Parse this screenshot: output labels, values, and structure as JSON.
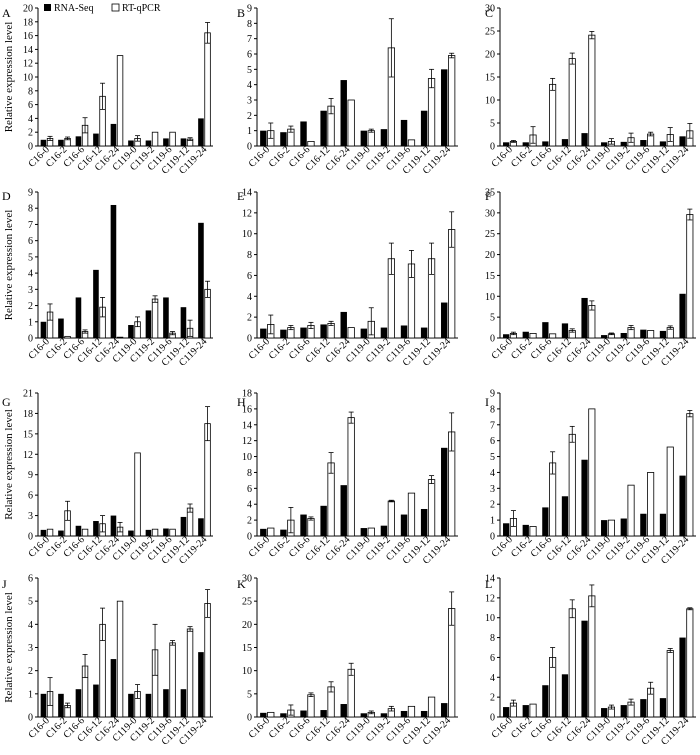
{
  "figure": {
    "ylabel": "Relative expression level",
    "legend": {
      "rna_label": "RNA-Seq",
      "qpcr_label": "RT-qPCR",
      "placement": "top-left"
    },
    "colors": {
      "rna": "#000000",
      "qpcr": "#ffffff",
      "axis": "#000000"
    }
  },
  "chart_data": [
    {
      "type": "bar",
      "panel": "A",
      "categories": [
        "C16-0",
        "C16-2",
        "C16-6",
        "C16-12",
        "C16-24",
        "C119-0",
        "C119-2",
        "C119-6",
        "C119-12",
        "C119-24"
      ],
      "ylim": [
        0,
        20
      ],
      "yticks": [
        0,
        2,
        4,
        6,
        8,
        10,
        12,
        14,
        16,
        18,
        20
      ],
      "series": [
        {
          "name": "RNA-Seq",
          "values": [
            0.9,
            0.9,
            1.4,
            1.8,
            3.2,
            0.8,
            0.8,
            1.1,
            1.1,
            4.0
          ]
        },
        {
          "name": "RT-qPCR",
          "values": [
            1.1,
            1.1,
            3.0,
            7.2,
            13.1,
            1.1,
            2.0,
            2.0,
            1.0,
            16.4
          ],
          "errors": [
            0.3,
            0.2,
            1.1,
            1.9,
            0,
            0.4,
            0,
            0,
            0.2,
            1.5
          ]
        }
      ]
    },
    {
      "type": "bar",
      "panel": "B",
      "categories": [
        "C16-0",
        "C16-2",
        "C16-6",
        "C16-12",
        "C16-24",
        "C119-0",
        "C119-2",
        "C119-6",
        "C119-12",
        "C119-24"
      ],
      "ylim": [
        0,
        9
      ],
      "yticks": [
        0,
        1,
        2,
        3,
        4,
        5,
        6,
        7,
        8,
        9
      ],
      "series": [
        {
          "name": "RNA-Seq",
          "values": [
            1.0,
            0.9,
            1.6,
            2.3,
            4.3,
            1.0,
            1.1,
            1.7,
            2.3,
            5.0
          ]
        },
        {
          "name": "RT-qPCR",
          "values": [
            1.0,
            1.1,
            0.3,
            2.6,
            3.0,
            1.0,
            6.4,
            0.4,
            4.4,
            5.9
          ],
          "errors": [
            0.5,
            0.2,
            0,
            0.5,
            0,
            0.1,
            1.9,
            0,
            0.6,
            0.15
          ]
        }
      ]
    },
    {
      "type": "bar",
      "panel": "C",
      "categories": [
        "C16-0",
        "C16-2",
        "C16-6",
        "C16-12",
        "C16-24",
        "C119-0",
        "C119-2",
        "C119-6",
        "C119-12",
        "C119-24"
      ],
      "ylim": [
        0,
        30
      ],
      "yticks": [
        0,
        5,
        10,
        15,
        20,
        25,
        30
      ],
      "series": [
        {
          "name": "RNA-Seq",
          "values": [
            0.8,
            0.8,
            1.0,
            1.5,
            2.8,
            0.8,
            0.9,
            1.3,
            1.0,
            2.1
          ]
        },
        {
          "name": "RT-qPCR",
          "values": [
            1.0,
            2.4,
            13.4,
            19.0,
            24.1,
            1.0,
            1.8,
            2.6,
            2.5,
            3.3
          ],
          "errors": [
            0.2,
            1.8,
            1.3,
            1.2,
            0.8,
            0.6,
            1.0,
            0.4,
            1.5,
            1.6
          ]
        }
      ]
    },
    {
      "type": "bar",
      "panel": "D",
      "categories": [
        "C16-0",
        "C16-2",
        "C16-6",
        "C16-12",
        "C16-24",
        "C119-0",
        "C119-2",
        "C119-6",
        "C119-12",
        "C119-24"
      ],
      "ylim": [
        0,
        9
      ],
      "yticks": [
        0,
        1,
        2,
        3,
        4,
        5,
        6,
        7,
        8,
        9
      ],
      "series": [
        {
          "name": "RNA-Seq",
          "values": [
            1.0,
            1.2,
            2.5,
            4.2,
            8.2,
            0.8,
            1.7,
            2.5,
            1.9,
            7.1
          ]
        },
        {
          "name": "RT-qPCR",
          "values": [
            1.6,
            0.1,
            0.4,
            1.9,
            0.05,
            1.0,
            2.4,
            0.3,
            0.6,
            3.0
          ],
          "errors": [
            0.5,
            0,
            0.1,
            0.6,
            0,
            0.3,
            0.2,
            0.1,
            0.5,
            0.5
          ]
        }
      ]
    },
    {
      "type": "bar",
      "panel": "E",
      "categories": [
        "C16-0",
        "C16-2",
        "C16-6",
        "C16-12",
        "C16-24",
        "C119-0",
        "C119-2",
        "C119-6",
        "C119-12",
        "C119-24"
      ],
      "ylim": [
        0,
        14
      ],
      "yticks": [
        0,
        2,
        4,
        6,
        8,
        10,
        12,
        14
      ],
      "series": [
        {
          "name": "RNA-Seq",
          "values": [
            0.9,
            0.8,
            1.0,
            1.3,
            2.5,
            0.9,
            1.0,
            1.2,
            1.0,
            3.4
          ]
        },
        {
          "name": "RT-qPCR",
          "values": [
            1.3,
            1.0,
            1.2,
            1.4,
            1.0,
            1.6,
            7.6,
            7.1,
            7.6,
            10.4
          ],
          "errors": [
            0.9,
            0.2,
            0.3,
            0.2,
            0,
            1.3,
            1.5,
            1.3,
            1.5,
            1.7
          ]
        }
      ]
    },
    {
      "type": "bar",
      "panel": "F",
      "categories": [
        "C16-0",
        "C16-2",
        "C16-6",
        "C16-12",
        "C16-24",
        "C119-0",
        "C119-2",
        "C119-6",
        "C119-12",
        "C119-24"
      ],
      "ylim": [
        0,
        35
      ],
      "yticks": [
        0,
        5,
        10,
        15,
        20,
        25,
        30,
        35
      ],
      "series": [
        {
          "name": "RNA-Seq",
          "values": [
            0.9,
            1.5,
            3.8,
            3.5,
            9.6,
            0.7,
            1.2,
            2.0,
            1.7,
            10.6
          ]
        },
        {
          "name": "RT-qPCR",
          "values": [
            1.1,
            1.1,
            1.0,
            1.8,
            7.8,
            1.0,
            2.5,
            1.8,
            2.5,
            29.6
          ],
          "errors": [
            0.3,
            0,
            0,
            0.4,
            1.1,
            0.2,
            0.5,
            0,
            0.4,
            1.3
          ]
        }
      ]
    },
    {
      "type": "bar",
      "panel": "G",
      "categories": [
        "C16-0",
        "C16-2",
        "C16-6",
        "C16-12",
        "C16-24",
        "C119-0",
        "C119-2",
        "C119-6",
        "C119-12",
        "C119-24"
      ],
      "ylim": [
        0,
        21
      ],
      "yticks": [
        0,
        3,
        6,
        9,
        12,
        15,
        18,
        21
      ],
      "series": [
        {
          "name": "RNA-Seq",
          "values": [
            0.9,
            0.8,
            1.5,
            2.2,
            3.0,
            0.8,
            0.9,
            1.1,
            2.8,
            2.6
          ]
        },
        {
          "name": "RT-qPCR",
          "values": [
            1.0,
            3.7,
            1.0,
            1.8,
            1.3,
            12.2,
            1.0,
            1.0,
            4.1,
            16.5
          ],
          "errors": [
            0,
            1.4,
            0,
            1.2,
            0.7,
            0,
            0,
            0,
            0.6,
            2.5
          ]
        }
      ]
    },
    {
      "type": "bar",
      "panel": "H",
      "categories": [
        "C16-0",
        "C16-2",
        "C16-6",
        "C16-12",
        "C16-24",
        "C119-0",
        "C119-2",
        "C119-6",
        "C119-12",
        "C119-24"
      ],
      "ylim": [
        0,
        18
      ],
      "yticks": [
        0,
        2,
        4,
        6,
        8,
        10,
        12,
        14,
        16,
        18
      ],
      "series": [
        {
          "name": "RNA-Seq",
          "values": [
            0.9,
            0.8,
            2.7,
            3.8,
            6.4,
            1.0,
            1.3,
            2.7,
            3.4,
            11.1
          ]
        },
        {
          "name": "RT-qPCR",
          "values": [
            1.0,
            2.0,
            2.2,
            9.2,
            14.9,
            1.0,
            4.4,
            5.4,
            7.1,
            13.1
          ],
          "errors": [
            0,
            1.6,
            0.2,
            1.3,
            0.7,
            0,
            0.1,
            0,
            0.5,
            2.4
          ]
        }
      ]
    },
    {
      "type": "bar",
      "panel": "I",
      "categories": [
        "C16-0",
        "C16-2",
        "C16-6",
        "C16-12",
        "C16-24",
        "C119-0",
        "C119-2",
        "C119-6",
        "C119-12",
        "C119-24"
      ],
      "ylim": [
        0,
        9
      ],
      "yticks": [
        0,
        1,
        2,
        3,
        4,
        5,
        6,
        7,
        8,
        9
      ],
      "series": [
        {
          "name": "RNA-Seq",
          "values": [
            0.8,
            0.7,
            1.8,
            2.5,
            4.8,
            1.0,
            1.1,
            1.4,
            1.4,
            3.8
          ]
        },
        {
          "name": "RT-qPCR",
          "values": [
            1.1,
            0.6,
            4.6,
            6.4,
            8.0,
            1.0,
            3.2,
            4.0,
            5.6,
            7.7
          ],
          "errors": [
            0.5,
            0,
            0.7,
            0.5,
            0,
            0,
            0,
            0,
            0,
            0.2
          ]
        }
      ]
    },
    {
      "type": "bar",
      "panel": "J",
      "categories": [
        "C16-0",
        "C16-2",
        "C16-6",
        "C16-12",
        "C16-24",
        "C119-0",
        "C119-2",
        "C119-6",
        "C119-12",
        "C119-24"
      ],
      "ylim": [
        0,
        6
      ],
      "yticks": [
        0,
        1,
        2,
        3,
        4,
        5,
        6
      ],
      "series": [
        {
          "name": "RNA-Seq",
          "values": [
            1.0,
            1.0,
            1.2,
            1.4,
            2.5,
            1.0,
            1.0,
            1.2,
            1.2,
            2.8
          ]
        },
        {
          "name": "RT-qPCR",
          "values": [
            1.1,
            0.5,
            2.2,
            4.0,
            5.0,
            1.1,
            2.9,
            3.2,
            3.8,
            4.9
          ],
          "errors": [
            0.6,
            0.1,
            0.5,
            0.7,
            0,
            0.3,
            1.1,
            0.1,
            0.1,
            0.6
          ]
        }
      ]
    },
    {
      "type": "bar",
      "panel": "K",
      "categories": [
        "C16-0",
        "C16-2",
        "C16-6",
        "C16-12",
        "C16-24",
        "C119-0",
        "C119-2",
        "C119-6",
        "C119-12",
        "C119-24"
      ],
      "ylim": [
        0,
        30
      ],
      "yticks": [
        0,
        5,
        10,
        15,
        20,
        25,
        30
      ],
      "series": [
        {
          "name": "RNA-Seq",
          "values": [
            0.9,
            0.8,
            1.4,
            1.5,
            2.8,
            0.8,
            0.8,
            1.3,
            1.3,
            3.0
          ]
        },
        {
          "name": "RT-qPCR",
          "values": [
            1.0,
            1.5,
            4.8,
            6.5,
            10.3,
            1.0,
            1.8,
            2.3,
            4.3,
            23.4
          ],
          "errors": [
            0,
            1.1,
            0.4,
            1.1,
            1.3,
            0.3,
            0.5,
            0,
            0,
            3.6
          ]
        }
      ]
    },
    {
      "type": "bar",
      "panel": "L",
      "categories": [
        "C16-0",
        "C16-2",
        "C16-6",
        "C16-12",
        "C16-24",
        "C119-0",
        "C119-2",
        "C119-6",
        "C119-12",
        "C119-24"
      ],
      "ylim": [
        0,
        14
      ],
      "yticks": [
        0,
        2,
        4,
        6,
        8,
        10,
        12,
        14
      ],
      "series": [
        {
          "name": "RNA-Seq",
          "values": [
            1.0,
            1.2,
            3.2,
            4.3,
            9.7,
            0.9,
            1.2,
            1.8,
            1.9,
            8.0
          ]
        },
        {
          "name": "RT-qPCR",
          "values": [
            1.4,
            1.3,
            6.0,
            10.9,
            12.2,
            1.0,
            1.5,
            2.9,
            6.7,
            10.9
          ],
          "errors": [
            0.3,
            0,
            1.0,
            0.9,
            1.1,
            0.2,
            0.3,
            0.6,
            0.2,
            0.1
          ]
        }
      ]
    }
  ]
}
